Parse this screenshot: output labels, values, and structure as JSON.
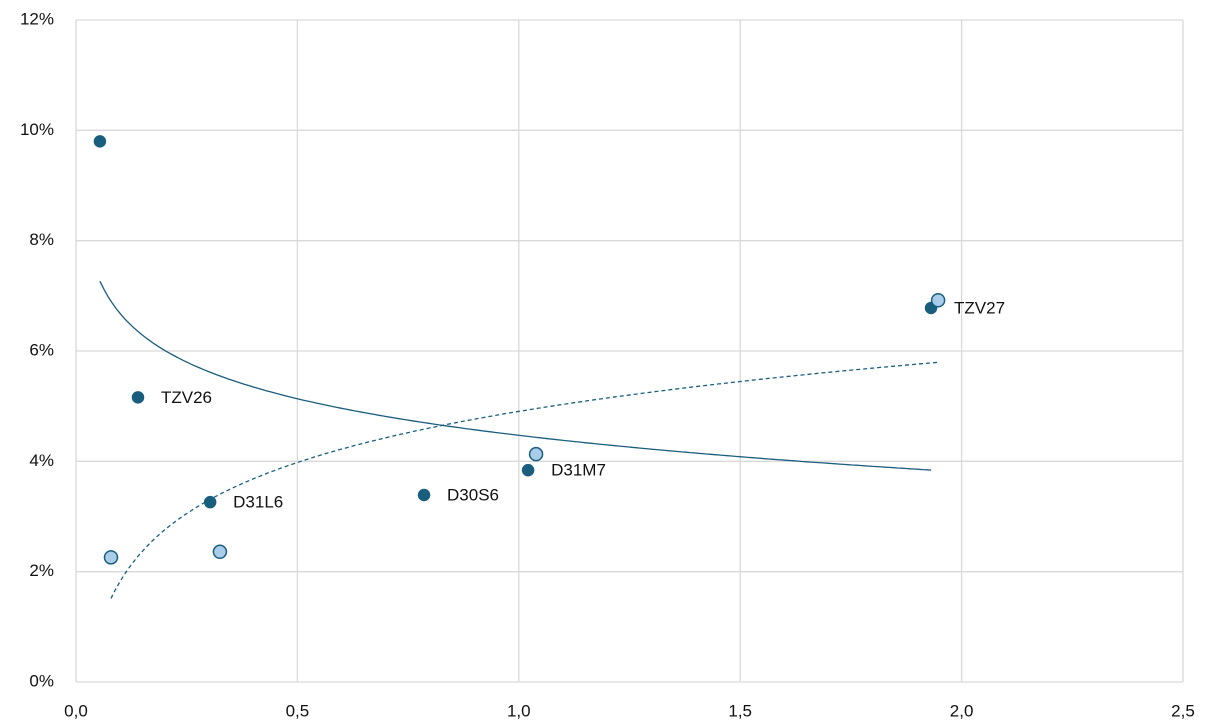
{
  "chart_data": {
    "type": "scatter",
    "xlim": [
      0,
      2.5
    ],
    "xticks": [
      {
        "value": 0,
        "label": "0,0"
      },
      {
        "value": 0.5,
        "label": "0,5"
      },
      {
        "value": 1,
        "label": "1,0"
      },
      {
        "value": 1.5,
        "label": "1,5"
      },
      {
        "value": 2,
        "label": "2,0"
      },
      {
        "value": 2.5,
        "label": "2,5"
      }
    ],
    "ylim": [
      0,
      12
    ],
    "yticks": [
      {
        "value": 0,
        "label": "0%"
      },
      {
        "value": 2,
        "label": "2%"
      },
      {
        "value": 4,
        "label": "4%"
      },
      {
        "value": 6,
        "label": "6%"
      },
      {
        "value": 8,
        "label": "8%"
      },
      {
        "value": 10,
        "label": "10%"
      },
      {
        "value": 12,
        "label": "12%"
      }
    ],
    "grid": true,
    "series": [
      {
        "color": "#1a5e7e",
        "edge": "#1a5e7e",
        "x": [
          0.054,
          0.14,
          0.303,
          0.786,
          1.021,
          1.931
        ],
        "values": [
          9.8,
          5.16,
          3.26,
          3.39,
          3.84,
          6.78
        ],
        "point_labels": [
          null,
          "TZV26",
          "D31L6",
          "D30S6",
          "D31M7",
          "TZV27"
        ],
        "trendline": {
          "type": "logarithmic",
          "dash": false
        }
      },
      {
        "color": "#a9cde8",
        "edge": "#1a5e7e",
        "x": [
          0.079,
          0.325,
          1.039,
          1.947
        ],
        "values": [
          2.26,
          2.36,
          4.13,
          6.92
        ],
        "trendline": {
          "type": "logarithmic",
          "dash": true
        }
      }
    ]
  }
}
